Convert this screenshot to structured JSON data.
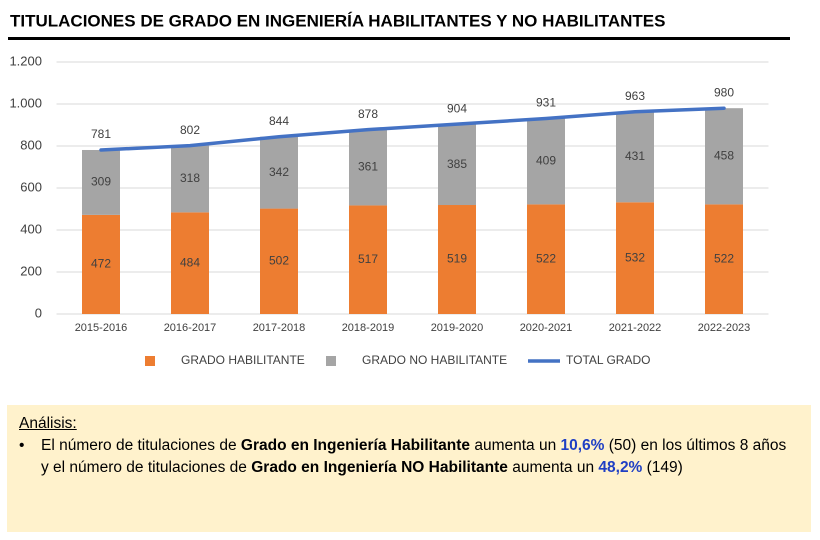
{
  "chart_data": {
    "type": "bar",
    "stacked": true,
    "title": "TITULACIONES DE GRADO EN INGENIERÍA HABILITANTES Y NO HABILITANTES",
    "categories": [
      "2015-2016",
      "2016-2017",
      "2017-2018",
      "2018-2019",
      "2019-2020",
      "2020-2021",
      "2021-2022",
      "2022-2023"
    ],
    "series": [
      {
        "name": "GRADO HABILITANTE",
        "color": "#ed7d31",
        "values": [
          472,
          484,
          502,
          517,
          519,
          522,
          532,
          522
        ]
      },
      {
        "name": "GRADO NO HABILITANTE",
        "color": "#a5a5a5",
        "values": [
          309,
          318,
          342,
          361,
          385,
          409,
          431,
          458
        ]
      },
      {
        "name": "TOTAL GRADO",
        "type": "line",
        "color": "#4472c4",
        "values": [
          781,
          802,
          844,
          878,
          904,
          931,
          963,
          980
        ]
      }
    ],
    "ylim": [
      0,
      1200
    ],
    "yticks": [
      0,
      200,
      400,
      600,
      800,
      {
        "value": 1000,
        "label": "1.000"
      },
      {
        "value": 1200,
        "label": "1.200"
      }
    ],
    "grid": true,
    "legend": "bottom"
  },
  "analysis": {
    "heading": "Análisis:",
    "runs": [
      {
        "text": "El número de titulaciones de ",
        "style": "normal"
      },
      {
        "text": "Grado en Ingeniería Habilitante",
        "style": "bold"
      },
      {
        "text": " aumenta un ",
        "style": "normal"
      },
      {
        "text": "10,6%",
        "style": "blue"
      },
      {
        "text": " (50) en los últimos 8 años y el número de titulaciones de ",
        "style": "normal"
      },
      {
        "text": "Grado en Ingeniería NO Habilitante",
        "style": "bold"
      },
      {
        "text": " aumenta un ",
        "style": "normal"
      },
      {
        "text": "48,2%",
        "style": "blue"
      },
      {
        "text": " (149)",
        "style": "normal"
      }
    ]
  }
}
